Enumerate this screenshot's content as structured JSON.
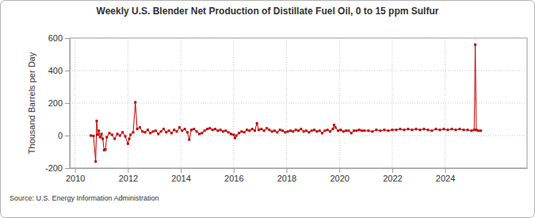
{
  "chart_data": {
    "type": "line",
    "title": "Weekly U.S. Blender Net Production of Distillate Fuel Oil, 0 to 15 ppm Sulfur",
    "y_label": "Thousand Barrels per Day",
    "source": "Source: U.S. Energy Information Administration",
    "color": "#c00000",
    "marker": "square",
    "grid": true,
    "xlim": [
      2009.8,
      2027.1
    ],
    "xticks": [
      2010,
      2012,
      2014,
      2016,
      2018,
      2020,
      2022,
      2024
    ],
    "ylim": [
      -200,
      600
    ],
    "yticks": [
      -200,
      0,
      200,
      400,
      600
    ],
    "x": [
      2010.6,
      2010.7,
      2010.78,
      2010.82,
      2010.86,
      2010.9,
      2010.95,
      2011.0,
      2011.05,
      2011.1,
      2011.15,
      2011.2,
      2011.3,
      2011.4,
      2011.5,
      2011.6,
      2011.7,
      2011.8,
      2011.9,
      2012.0,
      2012.05,
      2012.1,
      2012.2,
      2012.28,
      2012.35,
      2012.45,
      2012.55,
      2012.65,
      2012.75,
      2012.85,
      2012.95,
      2013.05,
      2013.15,
      2013.25,
      2013.35,
      2013.45,
      2013.55,
      2013.65,
      2013.75,
      2013.85,
      2013.95,
      2014.05,
      2014.15,
      2014.25,
      2014.32,
      2014.4,
      2014.5,
      2014.6,
      2014.7,
      2014.8,
      2014.9,
      2015.0,
      2015.1,
      2015.2,
      2015.3,
      2015.4,
      2015.5,
      2015.6,
      2015.7,
      2015.8,
      2015.9,
      2016.0,
      2016.05,
      2016.1,
      2016.2,
      2016.3,
      2016.4,
      2016.5,
      2016.6,
      2016.7,
      2016.8,
      2016.88,
      2016.95,
      2017.05,
      2017.15,
      2017.25,
      2017.35,
      2017.45,
      2017.55,
      2017.65,
      2017.75,
      2017.85,
      2017.95,
      2018.05,
      2018.15,
      2018.25,
      2018.35,
      2018.45,
      2018.55,
      2018.65,
      2018.75,
      2018.85,
      2018.95,
      2019.05,
      2019.15,
      2019.25,
      2019.35,
      2019.45,
      2019.55,
      2019.65,
      2019.75,
      2019.8,
      2019.85,
      2019.95,
      2020.05,
      2020.15,
      2020.25,
      2020.35,
      2020.45,
      2020.55,
      2020.65,
      2020.75,
      2020.85,
      2020.95,
      2021.1,
      2021.25,
      2021.4,
      2021.55,
      2021.7,
      2021.85,
      2022.0,
      2022.15,
      2022.3,
      2022.45,
      2022.6,
      2022.75,
      2022.9,
      2023.05,
      2023.2,
      2023.35,
      2023.5,
      2023.65,
      2023.8,
      2023.95,
      2024.1,
      2024.25,
      2024.4,
      2024.55,
      2024.7,
      2024.85,
      2025.0,
      2025.1,
      2025.14,
      2025.18,
      2025.25,
      2025.35
    ],
    "values": [
      0,
      -2,
      -160,
      90,
      5,
      30,
      -10,
      10,
      -20,
      -90,
      -85,
      -10,
      15,
      5,
      -20,
      10,
      0,
      20,
      -5,
      -50,
      -20,
      5,
      20,
      205,
      40,
      50,
      25,
      20,
      35,
      15,
      25,
      30,
      10,
      25,
      40,
      20,
      30,
      15,
      35,
      25,
      50,
      30,
      40,
      20,
      -25,
      35,
      40,
      25,
      10,
      15,
      30,
      40,
      45,
      35,
      40,
      30,
      35,
      25,
      30,
      20,
      10,
      5,
      -15,
      0,
      15,
      25,
      20,
      35,
      30,
      40,
      30,
      75,
      35,
      40,
      30,
      45,
      35,
      25,
      30,
      20,
      35,
      30,
      20,
      25,
      30,
      25,
      35,
      30,
      40,
      25,
      30,
      20,
      30,
      35,
      25,
      30,
      15,
      30,
      35,
      25,
      40,
      65,
      50,
      30,
      35,
      25,
      30,
      30,
      15,
      30,
      30,
      35,
      30,
      30,
      30,
      25,
      35,
      30,
      35,
      30,
      35,
      35,
      40,
      35,
      40,
      35,
      40,
      35,
      40,
      35,
      30,
      40,
      35,
      40,
      35,
      40,
      35,
      40,
      35,
      35,
      30,
      35,
      560,
      35,
      30,
      30
    ]
  }
}
